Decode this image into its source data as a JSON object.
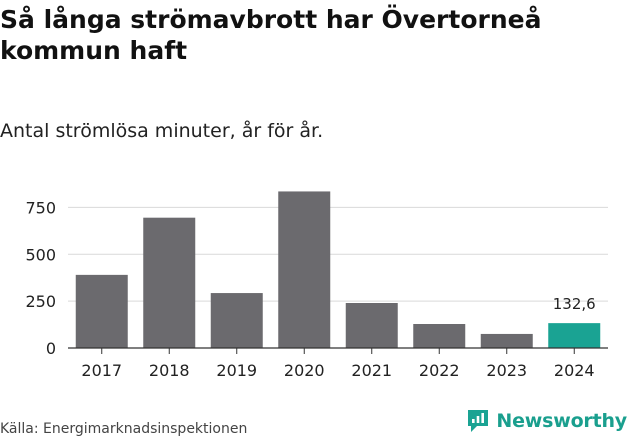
{
  "header": {
    "title": "Så långa strömavbrott har Övertorneå kommun haft",
    "subtitle": "Antal strömlösa minuter, år för år."
  },
  "chart_data": {
    "type": "bar",
    "categories": [
      "2017",
      "2018",
      "2019",
      "2020",
      "2021",
      "2022",
      "2023",
      "2024"
    ],
    "values": [
      390,
      695,
      293,
      835,
      240,
      128,
      75,
      132.6
    ],
    "ylim": [
      0,
      860
    ],
    "yticks": [
      0,
      250,
      500,
      750
    ],
    "ytick_labels": [
      "0",
      "250",
      "500",
      "750"
    ],
    "highlight_index": 7,
    "highlight_label": "132,6",
    "colors": {
      "bar": "#6b6a6e",
      "highlight": "#1aa393",
      "grid": "#d9d9d9",
      "axis": "#333333"
    },
    "grid": true,
    "legend": "none"
  },
  "footer": {
    "source": "Källa: Energimarknadsinspektionen",
    "brand": "Newsworthy",
    "brand_icon": "newsworthy-logo-icon"
  }
}
